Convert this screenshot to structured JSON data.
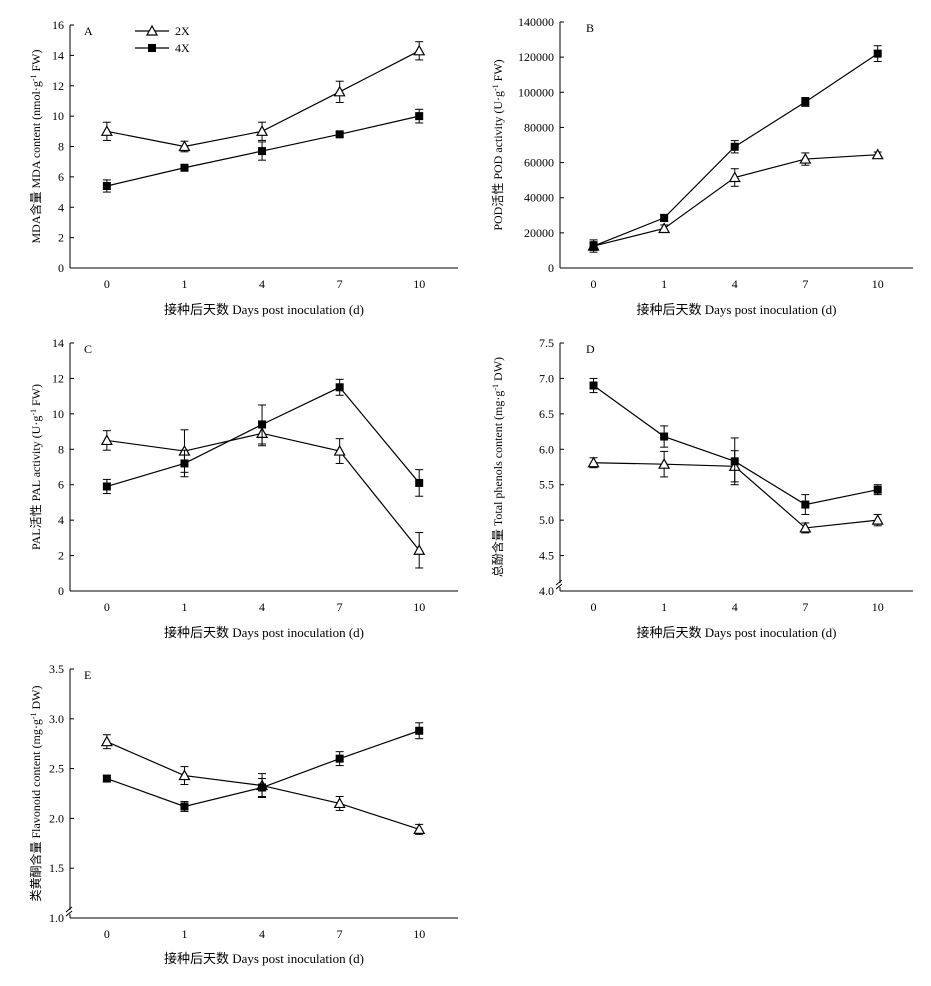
{
  "legend": {
    "items": [
      {
        "label": "2X",
        "marker": "triangle-open-icon"
      },
      {
        "label": "4X",
        "marker": "square-filled-icon"
      }
    ]
  },
  "chart_data": [
    {
      "panel": "A",
      "type": "line",
      "ylabel": "MDA含量 MDA content (nmol·g-1 FW)",
      "xlabel": "接种后天数 Days post inoculation (d)",
      "categories": [
        "0",
        "1",
        "4",
        "7",
        "10"
      ],
      "ylim": [
        0,
        16
      ],
      "yticks": [
        "0",
        "2",
        "4",
        "6",
        "8",
        "10",
        "12",
        "14",
        "16"
      ],
      "axis_break": false,
      "series": [
        {
          "name": "2X",
          "marker": "triangle-open-icon",
          "values": [
            9.0,
            8.0,
            9.0,
            11.6,
            14.3
          ],
          "errors": [
            0.6,
            0.35,
            0.6,
            0.7,
            0.6
          ]
        },
        {
          "name": "4X",
          "marker": "square-filled-icon",
          "values": [
            5.4,
            6.6,
            7.7,
            8.8,
            10.0
          ],
          "errors": [
            0.4,
            0.15,
            0.6,
            0.15,
            0.45
          ]
        }
      ]
    },
    {
      "panel": "B",
      "type": "line",
      "ylabel": "POD活性 POD activity (U·g-1 FW)",
      "xlabel": "接种后天数 Days post inoculation (d)",
      "categories": [
        "0",
        "1",
        "4",
        "7",
        "10"
      ],
      "ylim": [
        0,
        140000
      ],
      "yticks": [
        "0",
        "20000",
        "40000",
        "60000",
        "80000",
        "100000",
        "120000",
        "140000"
      ],
      "axis_break": false,
      "series": [
        {
          "name": "2X",
          "marker": "triangle-open-icon",
          "values": [
            12500,
            22500,
            51500,
            62000,
            64500
          ],
          "errors": [
            2500,
            2000,
            5000,
            3500,
            1500
          ]
        },
        {
          "name": "4X",
          "marker": "square-filled-icon",
          "values": [
            12500,
            28500,
            69000,
            94500,
            122000
          ],
          "errors": [
            3500,
            2000,
            3500,
            2500,
            4500
          ]
        }
      ]
    },
    {
      "panel": "C",
      "type": "line",
      "ylabel": "PAL活性 PAL activity (U·g-1 FW)",
      "xlabel": "接种后天数 Days post inoculation (d)",
      "categories": [
        "0",
        "1",
        "4",
        "7",
        "10"
      ],
      "ylim": [
        0,
        14
      ],
      "yticks": [
        "0",
        "2",
        "4",
        "6",
        "8",
        "10",
        "12",
        "14"
      ],
      "axis_break": false,
      "series": [
        {
          "name": "2X",
          "marker": "triangle-open-icon",
          "values": [
            8.5,
            7.9,
            8.9,
            7.9,
            2.3
          ],
          "errors": [
            0.55,
            1.2,
            0.7,
            0.7,
            1.0
          ]
        },
        {
          "name": "4X",
          "marker": "square-filled-icon",
          "values": [
            5.9,
            7.2,
            9.4,
            11.5,
            6.1
          ],
          "errors": [
            0.4,
            0.75,
            1.1,
            0.45,
            0.75
          ]
        }
      ]
    },
    {
      "panel": "D",
      "type": "line",
      "ylabel": "总酚含量 Total phenols content (mg·g-1 DW)",
      "xlabel": "接种后天数 Days post inoculation (d)",
      "categories": [
        "0",
        "1",
        "4",
        "7",
        "10"
      ],
      "ylim": [
        4.0,
        7.5
      ],
      "yticks": [
        "4.0",
        "4.5",
        "5.0",
        "5.5",
        "6.0",
        "6.5",
        "7.0",
        "7.5"
      ],
      "axis_break": true,
      "series": [
        {
          "name": "2X",
          "marker": "triangle-open-icon",
          "values": [
            5.81,
            5.79,
            5.76,
            4.89,
            5.0
          ],
          "errors": [
            0.07,
            0.18,
            0.22,
            0.07,
            0.08
          ]
        },
        {
          "name": "4X",
          "marker": "square-filled-icon",
          "values": [
            6.9,
            6.18,
            5.83,
            5.22,
            5.43
          ],
          "errors": [
            0.1,
            0.15,
            0.33,
            0.14,
            0.07
          ]
        }
      ]
    },
    {
      "panel": "E",
      "type": "line",
      "ylabel": "类黄酮含量 Flavonoid content (mg·g-1 DW)",
      "xlabel": "接种后天数 Days post inoculation (d)",
      "categories": [
        "0",
        "1",
        "4",
        "7",
        "10"
      ],
      "ylim": [
        1.0,
        3.5
      ],
      "yticks": [
        "1.0",
        "1.5",
        "2.0",
        "2.5",
        "3.0",
        "3.5"
      ],
      "axis_break": true,
      "series": [
        {
          "name": "2X",
          "marker": "triangle-open-icon",
          "values": [
            2.77,
            2.43,
            2.33,
            2.15,
            1.89
          ],
          "errors": [
            0.07,
            0.09,
            0.12,
            0.07,
            0.05
          ]
        },
        {
          "name": "4X",
          "marker": "square-filled-icon",
          "values": [
            2.4,
            2.12,
            2.31,
            2.6,
            2.88
          ],
          "errors": [
            0.03,
            0.05,
            0.09,
            0.07,
            0.08
          ]
        }
      ]
    }
  ]
}
